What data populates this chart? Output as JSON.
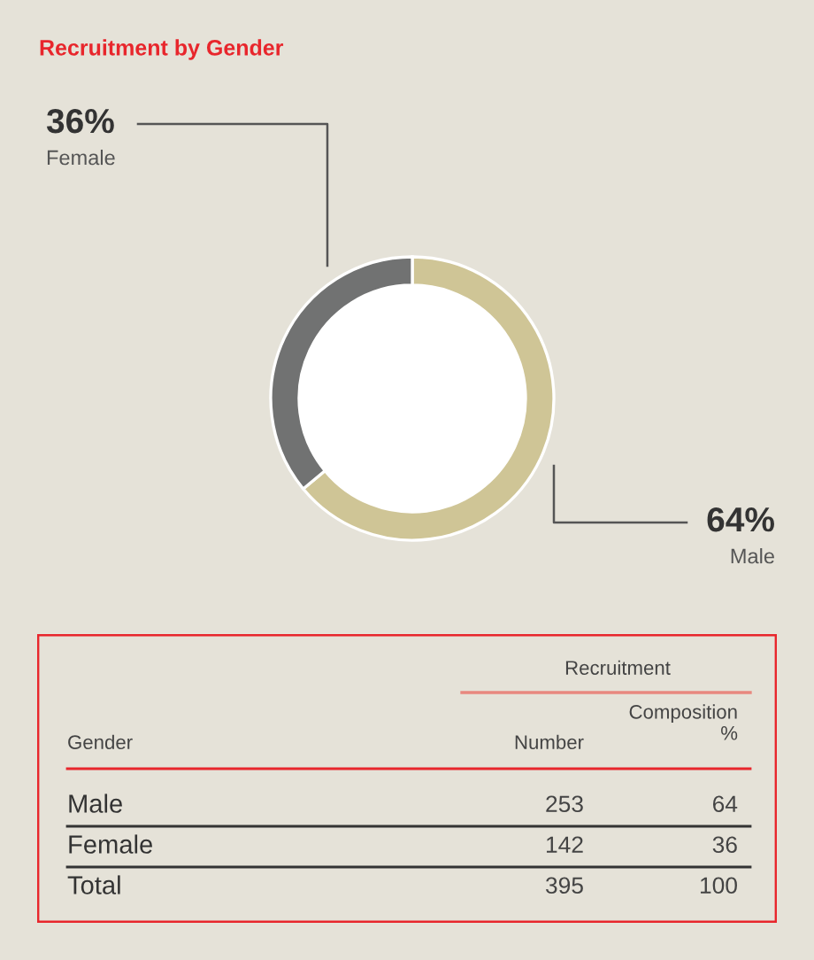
{
  "chart_data": [
    {
      "type": "donut",
      "title": "Recruitment by Gender",
      "categories": [
        "Male",
        "Female"
      ],
      "values": [
        64,
        36
      ],
      "colors": [
        "#cfc596",
        "#717272"
      ],
      "value_labels": [
        "64%",
        "36%"
      ]
    },
    {
      "type": "other",
      "title": "Recruitment",
      "xlabel": "Gender",
      "categories": [
        "Male",
        "Female",
        "Total"
      ],
      "data_labels": true,
      "series": [
        {
          "name": "Number",
          "values": [
            253,
            142,
            395
          ]
        },
        {
          "name": "Composition\n%",
          "values": [
            64,
            36,
            100
          ]
        }
      ]
    }
  ]
}
